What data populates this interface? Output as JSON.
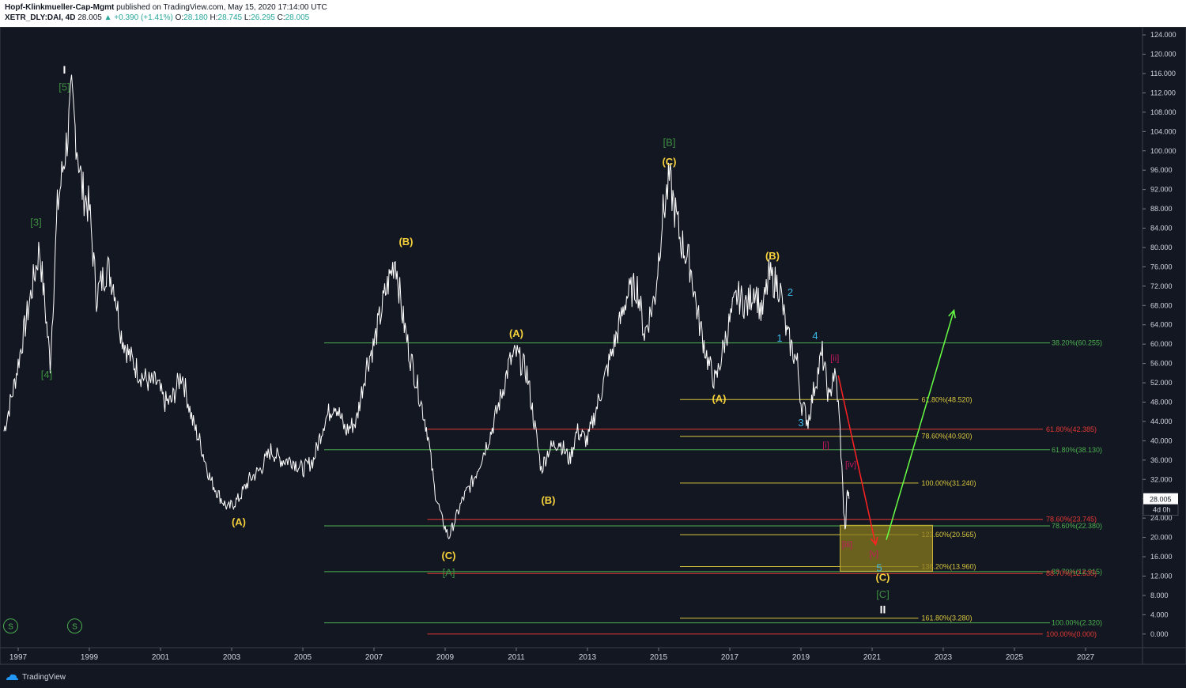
{
  "header": {
    "author": "Hopf-Klinkmueller-Cap-Mgmt",
    "published": " published on TradingView.com, May 15, 2020 17:14:00 UTC",
    "symbol": "XETR_DLY:DAI, 4D",
    "last": "28.005",
    "change": "▲ +0.390 (+1.41%)",
    "o_label": "O:",
    "o_val": "28.180",
    "h_label": "H:",
    "h_val": "28.745",
    "l_label": "L:",
    "l_val": "26.295",
    "c_label": "C:",
    "c_val": "28.005"
  },
  "footer": {
    "brand": "TradingView"
  },
  "colors": {
    "bg": "#131722",
    "price": "#ffffff",
    "yellow": "#f7d23b",
    "green": "#3e8e41",
    "red": "#e53935",
    "blue": "#3dbbea",
    "pink": "#c2185b",
    "fib_yellow": "#d8c73d",
    "fib_green": "#4caf50",
    "fib_red": "#e53935",
    "box": "#8a7b1f",
    "arrow_green": "#66ff44",
    "arrow_red": "#ff2222"
  },
  "chart_data": {
    "type": "line",
    "title": "",
    "xlabel": "",
    "ylabel": "",
    "xlim": [
      1996.6,
      2028.6
    ],
    "ylim": [
      -2,
      125
    ],
    "x_ticks": [
      "1997",
      "1999",
      "2001",
      "2003",
      "2005",
      "2007",
      "2009",
      "2011",
      "2013",
      "2015",
      "2017",
      "2019",
      "2021",
      "2023",
      "2025",
      "2027"
    ],
    "y_ticks": [
      "124.000",
      "120.000",
      "116.000",
      "112.000",
      "108.000",
      "104.000",
      "100.000",
      "96.000",
      "92.000",
      "88.000",
      "84.000",
      "80.000",
      "76.000",
      "72.000",
      "68.000",
      "64.000",
      "60.000",
      "56.000",
      "52.000",
      "48.000",
      "44.000",
      "40.000",
      "36.000",
      "32.000",
      "28.000",
      "24.000",
      "20.000",
      "16.000",
      "12.000",
      "8.000",
      "4.000",
      "0.000"
    ],
    "price_tag": "28.005",
    "timeframe_tag": "4d 0h",
    "series": [
      {
        "x": [
          1996.6,
          1996.9,
          1997.2,
          1997.6,
          1997.9,
          1998.1,
          1998.4,
          1998.5,
          1998.8,
          1999.0,
          1999.2,
          1999.5,
          1999.7,
          1999.9,
          2000.1,
          2000.4,
          2000.7,
          2000.9,
          2001.1,
          2001.3,
          2001.6,
          2001.9,
          2002.1,
          2002.4,
          2002.7,
          2002.9,
          2003.2,
          2003.5,
          2003.8,
          2004.1,
          2004.4,
          2004.7,
          2005.0,
          2005.3,
          2005.6,
          2005.9,
          2006.2,
          2006.5,
          2006.8,
          2007.0,
          2007.3,
          2007.6,
          2007.8,
          2008.0,
          2008.2,
          2008.5,
          2008.7,
          2008.9,
          2009.1,
          2009.3,
          2009.5,
          2009.8,
          2010.0,
          2010.3,
          2010.6,
          2010.8,
          2011.0,
          2011.3,
          2011.5,
          2011.7,
          2011.9,
          2012.2,
          2012.5,
          2012.7,
          2013.0,
          2013.3,
          2013.6,
          2013.9,
          2014.1,
          2014.4,
          2014.6,
          2014.9,
          2015.1,
          2015.3,
          2015.6,
          2015.9,
          2016.1,
          2016.4,
          2016.6,
          2016.9,
          2017.2,
          2017.5,
          2017.7,
          2017.9,
          2018.1,
          2018.4,
          2018.6,
          2018.9,
          2019.0,
          2019.2,
          2019.4,
          2019.6,
          2019.8,
          2019.9,
          2020.0,
          2020.1,
          2020.2,
          2020.25,
          2020.3,
          2020.35
        ],
        "values": [
          42,
          52,
          64,
          80,
          56,
          88,
          104,
          111,
          92,
          88,
          70,
          76,
          72,
          62,
          58,
          54,
          52,
          52,
          48,
          48,
          54,
          44,
          40,
          32,
          28,
          26,
          28,
          32,
          34,
          38,
          36,
          36,
          34,
          36,
          44,
          48,
          42,
          44,
          56,
          60,
          70,
          78,
          66,
          58,
          52,
          42,
          30,
          24,
          20,
          24,
          28,
          32,
          36,
          42,
          50,
          56,
          58,
          54,
          44,
          34,
          38,
          40,
          36,
          42,
          40,
          48,
          56,
          64,
          70,
          72,
          62,
          70,
          86,
          94,
          82,
          76,
          66,
          56,
          52,
          62,
          70,
          68,
          72,
          66,
          74,
          72,
          62,
          56,
          48,
          44,
          52,
          58,
          48,
          54,
          52,
          42,
          26,
          21,
          30,
          28
        ]
      }
    ],
    "wave_labels": [
      {
        "text": "I",
        "x": 1998.3,
        "y": 116,
        "color": "white"
      },
      {
        "text": "[5]",
        "x": 1998.3,
        "y": 112.5,
        "color": "green"
      },
      {
        "text": "[3]",
        "x": 1997.5,
        "y": 84.5,
        "color": "green"
      },
      {
        "text": "[4]",
        "x": 1997.8,
        "y": 53,
        "color": "green"
      },
      {
        "text": "(A)",
        "x": 2003.2,
        "y": 22.5,
        "color": "yellow"
      },
      {
        "text": "(B)",
        "x": 2007.9,
        "y": 80.5,
        "color": "yellow"
      },
      {
        "text": "(C)",
        "x": 2009.1,
        "y": 15.5,
        "color": "yellow"
      },
      {
        "text": "[A]",
        "x": 2009.1,
        "y": 12,
        "color": "green"
      },
      {
        "text": "(A)",
        "x": 2011.0,
        "y": 61.5,
        "color": "yellow"
      },
      {
        "text": "(B)",
        "x": 2011.9,
        "y": 27,
        "color": "yellow"
      },
      {
        "text": "[B]",
        "x": 2015.3,
        "y": 101,
        "color": "green"
      },
      {
        "text": "(C)",
        "x": 2015.3,
        "y": 97,
        "color": "yellow"
      },
      {
        "text": "(A)",
        "x": 2016.7,
        "y": 48,
        "color": "yellow"
      },
      {
        "text": "(B)",
        "x": 2018.2,
        "y": 77.5,
        "color": "yellow"
      },
      {
        "text": "1",
        "x": 2018.4,
        "y": 60.5,
        "color": "blue"
      },
      {
        "text": "2",
        "x": 2018.7,
        "y": 70,
        "color": "blue"
      },
      {
        "text": "3",
        "x": 2019.0,
        "y": 43,
        "color": "blue"
      },
      {
        "text": "4",
        "x": 2019.4,
        "y": 61,
        "color": "blue"
      },
      {
        "text": "[ii]",
        "x": 2019.95,
        "y": 56.5,
        "color": "pink"
      },
      {
        "text": "[i]",
        "x": 2019.7,
        "y": 38.5,
        "color": "pink"
      },
      {
        "text": "[iv]",
        "x": 2020.4,
        "y": 34.5,
        "color": "pink"
      },
      {
        "text": "[iii]",
        "x": 2020.3,
        "y": 18,
        "color": "pink"
      },
      {
        "text": "[v]",
        "x": 2021.05,
        "y": 16,
        "color": "pink"
      },
      {
        "text": "5",
        "x": 2021.2,
        "y": 13,
        "color": "blue"
      },
      {
        "text": "(C)",
        "x": 2021.3,
        "y": 11,
        "color": "yellow"
      },
      {
        "text": "[C]",
        "x": 2021.3,
        "y": 7.5,
        "color": "green"
      },
      {
        "text": "II",
        "x": 2021.3,
        "y": 4.3,
        "color": "white"
      }
    ],
    "fib_levels": [
      {
        "label": "38.20%(60.255)",
        "y": 60.255,
        "x0": 2005.6,
        "x1": 2026.0,
        "color": "fib_green"
      },
      {
        "label": "61.80%(38.130)",
        "y": 38.13,
        "x0": 2005.6,
        "x1": 2026.0,
        "color": "fib_green"
      },
      {
        "label": "78.60%(22.380)",
        "y": 22.38,
        "x0": 2005.6,
        "x1": 2026.0,
        "color": "fib_green"
      },
      {
        "label": "88.70%(12.915)",
        "y": 12.915,
        "x0": 2005.6,
        "x1": 2026.0,
        "color": "fib_green"
      },
      {
        "label": "100.00%(2.320)",
        "y": 2.32,
        "x0": 2005.6,
        "x1": 2026.0,
        "color": "fib_green"
      },
      {
        "label": "61.80%(48.520)",
        "y": 48.52,
        "x0": 2015.6,
        "x1": 2022.3,
        "color": "fib_yellow"
      },
      {
        "label": "78.60%(40.920)",
        "y": 40.92,
        "x0": 2015.6,
        "x1": 2022.3,
        "color": "fib_yellow"
      },
      {
        "label": "100.00%(31.240)",
        "y": 31.24,
        "x0": 2015.6,
        "x1": 2022.3,
        "color": "fib_yellow"
      },
      {
        "label": "123.60%(20.565)",
        "y": 20.565,
        "x0": 2015.6,
        "x1": 2022.3,
        "color": "fib_yellow"
      },
      {
        "label": "138.20%(13.960)",
        "y": 13.96,
        "x0": 2015.6,
        "x1": 2022.3,
        "color": "fib_yellow"
      },
      {
        "label": "161.80%(3.280)",
        "y": 3.28,
        "x0": 2015.6,
        "x1": 2022.3,
        "color": "fib_yellow"
      },
      {
        "label": "61.80%(42.385)",
        "y": 42.385,
        "x0": 2008.5,
        "x1": 2025.8,
        "color": "fib_red"
      },
      {
        "label": "78.60%(23.745)",
        "y": 23.745,
        "x0": 2008.5,
        "x1": 2025.8,
        "color": "fib_red"
      },
      {
        "label": "88.70%(12.535)",
        "y": 12.535,
        "x0": 2008.5,
        "x1": 2025.8,
        "color": "fib_red"
      },
      {
        "label": "100.00%(0.000)",
        "y": 0.0,
        "x0": 2008.5,
        "x1": 2025.8,
        "color": "fib_red"
      }
    ],
    "target_box": {
      "x0": 2020.1,
      "x1": 2022.7,
      "y0": 13.0,
      "y1": 22.5
    },
    "arrows": [
      {
        "from": [
          2020.05,
          53.5
        ],
        "to": [
          2021.1,
          18.5
        ],
        "color": "arrow_red"
      },
      {
        "from": [
          2021.4,
          19.5
        ],
        "to": [
          2023.3,
          67.0
        ],
        "color": "arrow_green"
      }
    ],
    "session_markers": [
      {
        "text": "S",
        "x": 1996.7,
        "y": 1.0
      },
      {
        "text": "S",
        "x": 1998.5,
        "y": 1.0
      }
    ]
  }
}
